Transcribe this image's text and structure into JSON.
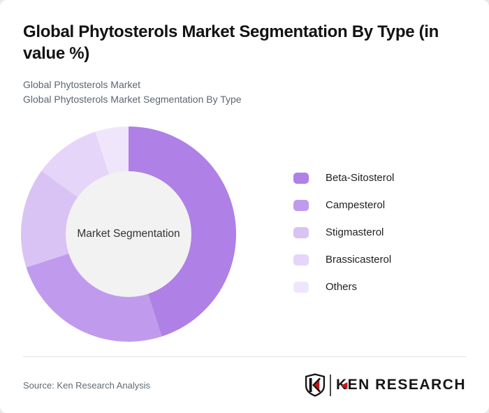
{
  "header": {
    "title": "Global Phytosterols Market Segmentation By Type (in value %)",
    "subtitle_line1": "Global Phytosterols Market",
    "subtitle_line2": "Global Phytosterols Market Segmentation By Type"
  },
  "chart_data": {
    "type": "pie",
    "variant": "donut",
    "title": "Global Phytosterols Market Segmentation By Type (in value %)",
    "center_label": "Market Segmentation",
    "unit": "% of market value",
    "start_angle_deg": 0,
    "direction": "clockwise",
    "legend_position": "right",
    "inner_circle_color": "#f2f2f2",
    "center_text_color": "#333333",
    "segments": [
      {
        "label": "Beta-Sitosterol",
        "value": 45,
        "color": "#af80e6"
      },
      {
        "label": "Campesterol",
        "value": 25,
        "color": "#c09bed"
      },
      {
        "label": "Stigmasterol",
        "value": 15,
        "color": "#d9c3f4"
      },
      {
        "label": "Brassicasterol",
        "value": 10,
        "color": "#e5d5f8"
      },
      {
        "label": "Others",
        "value": 5,
        "color": "#f0e6fc"
      }
    ]
  },
  "footer": {
    "source": "Source: Ken Research Analysis",
    "logo_text": "KEN RESEARCH",
    "logo_red": "#c4161c",
    "logo_black": "#141414"
  }
}
